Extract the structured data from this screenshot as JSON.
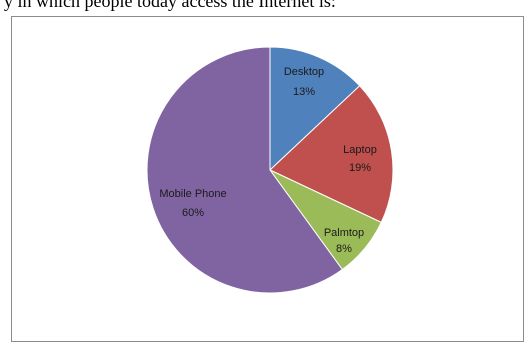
{
  "caption": "y in which people today access the Internet is:",
  "chart_data": {
    "type": "pie",
    "title": "",
    "slices": [
      {
        "label": "Desktop",
        "value": 13,
        "display": "13%",
        "color": "#4f81bd"
      },
      {
        "label": "Laptop",
        "value": 19,
        "display": "19%",
        "color": "#c0504d"
      },
      {
        "label": "Palmtop",
        "value": 8,
        "display": "8%",
        "color": "#9bbb59"
      },
      {
        "label": "Mobile Phone",
        "value": 60,
        "display": "60%",
        "color": "#8064a2"
      }
    ]
  }
}
